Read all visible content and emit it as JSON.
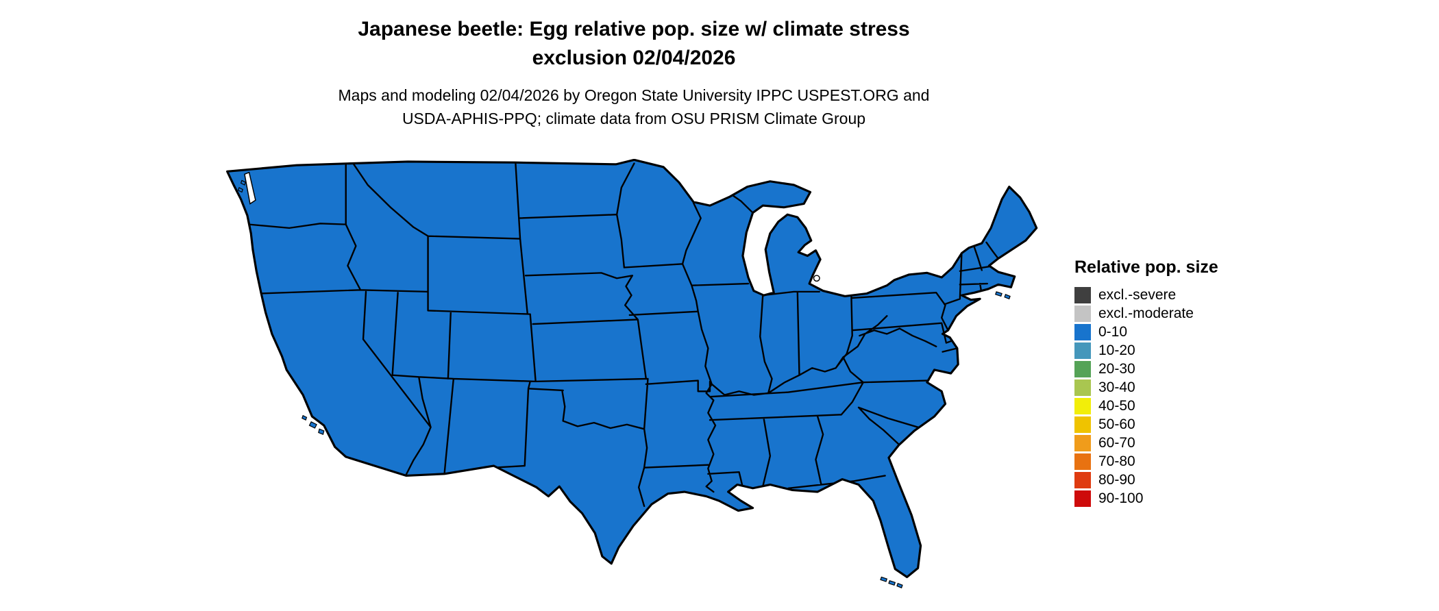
{
  "page": {
    "background": "#ffffff"
  },
  "title": {
    "line1": "Japanese beetle: Egg relative pop. size w/ climate stress",
    "line2": "exclusion 02/04/2026"
  },
  "subtitle": {
    "line1": "Maps and modeling 02/04/2026 by Oregon State University IPPC USPEST.ORG and",
    "line2": "USDA-APHIS-PPQ; climate data from OSU PRISM Climate Group"
  },
  "map": {
    "type": "choropleth",
    "region": "contiguous United States with state borders",
    "uniform_fill_class": "0-10",
    "fill_color": "#1874CD",
    "state_border_color": "#000000",
    "water_color": "#FFFFFF"
  },
  "legend": {
    "title": "Relative pop. size",
    "items": [
      {
        "label": "excl.-severe",
        "color": "#3F3F3F"
      },
      {
        "label": "excl.-moderate",
        "color": "#C4C4C4"
      },
      {
        "label": "0-10",
        "color": "#1874CD"
      },
      {
        "label": "10-20",
        "color": "#4597BB"
      },
      {
        "label": "20-30",
        "color": "#55A357"
      },
      {
        "label": "30-40",
        "color": "#A9C650"
      },
      {
        "label": "40-50",
        "color": "#F2EE09"
      },
      {
        "label": "50-60",
        "color": "#EFC300"
      },
      {
        "label": "60-70",
        "color": "#F09C1B"
      },
      {
        "label": "70-80",
        "color": "#E87211"
      },
      {
        "label": "80-90",
        "color": "#DF3B10"
      },
      {
        "label": "90-100",
        "color": "#CE0B0B"
      }
    ]
  }
}
